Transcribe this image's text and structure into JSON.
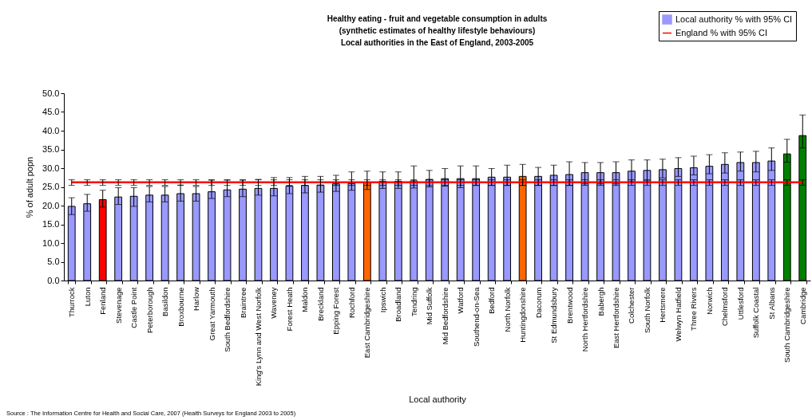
{
  "chart_data": {
    "type": "bar",
    "title": "Healthy eating - fruit and vegetable consumption in adults\n(synthetic estimates of healthy lifestyle behaviours)\nLocal authorities in the East of England, 2003-2005",
    "xlabel": "Local authority",
    "ylabel": "% of adult popn",
    "categories": [
      "Thurrock",
      "Luton",
      "Fenland",
      "Stevenage",
      "Castle Point",
      "Peterborough",
      "Basildon",
      "Broxbourne",
      "Harlow",
      "Great Yarmouth",
      "South Bedfordshire",
      "Braintree",
      "King's Lynn and West Norfolk",
      "Waveney",
      "Forest Heath",
      "Maldon",
      "Breckland",
      "Epping Forest",
      "Rochford",
      "East Cambridgeshire",
      "Ipswich",
      "Broadland",
      "Tendring",
      "Mid Suffolk",
      "Mid Bedfordshire",
      "Watford",
      "Southend-on-Sea",
      "Bedford",
      "North Norfolk",
      "Huntingdonshire",
      "Dacorum",
      "St Edmundsbury",
      "Brentwood",
      "North Hertfordshire",
      "Babergh",
      "East Hertfordshire",
      "Colchester",
      "South Norfolk",
      "Hertsmere",
      "Welwyn Hatfield",
      "Three Rivers",
      "Norwich",
      "Chelmsford",
      "Uttlesford",
      "Suffolk Coastal",
      "St Albans",
      "South Cambridgeshire",
      "Cambridge"
    ],
    "series": [
      {
        "name": "Local authority % with 95% CI",
        "color": "#9999ff",
        "colors": [
          "#9999ff",
          "#9999ff",
          "#ff0000",
          "#9999ff",
          "#9999ff",
          "#9999ff",
          "#9999ff",
          "#9999ff",
          "#9999ff",
          "#9999ff",
          "#9999ff",
          "#9999ff",
          "#9999ff",
          "#9999ff",
          "#9999ff",
          "#9999ff",
          "#9999ff",
          "#9999ff",
          "#9999ff",
          "#ff6600",
          "#9999ff",
          "#9999ff",
          "#9999ff",
          "#9999ff",
          "#9999ff",
          "#9999ff",
          "#9999ff",
          "#9999ff",
          "#9999ff",
          "#ff6600",
          "#9999ff",
          "#9999ff",
          "#9999ff",
          "#9999ff",
          "#9999ff",
          "#9999ff",
          "#9999ff",
          "#9999ff",
          "#9999ff",
          "#9999ff",
          "#9999ff",
          "#9999ff",
          "#9999ff",
          "#9999ff",
          "#9999ff",
          "#9999ff",
          "#008000",
          "#008000"
        ],
        "values": [
          19.8,
          20.5,
          21.6,
          22.3,
          22.5,
          22.8,
          22.8,
          23.2,
          23.2,
          23.7,
          24.2,
          24.4,
          24.6,
          24.6,
          25.2,
          25.4,
          25.5,
          25.8,
          25.9,
          26.2,
          26.5,
          26.5,
          26.6,
          27.0,
          27.2,
          27.2,
          27.2,
          27.6,
          27.6,
          27.8,
          27.8,
          28.1,
          28.3,
          28.8,
          28.8,
          28.8,
          29.2,
          29.4,
          29.6,
          29.9,
          30.1,
          30.5,
          31.0,
          31.5,
          31.5,
          31.9,
          33.8,
          38.7
        ],
        "errors": [
          [
            17.6,
            22.1
          ],
          [
            18.5,
            23.0
          ],
          [
            19.6,
            24.1
          ],
          [
            20.3,
            24.8
          ],
          [
            19.8,
            24.8
          ],
          [
            21.0,
            25.1
          ],
          [
            21.0,
            25.1
          ],
          [
            21.2,
            25.5
          ],
          [
            21.2,
            25.1
          ],
          [
            21.9,
            26.8
          ],
          [
            22.4,
            26.8
          ],
          [
            22.4,
            26.8
          ],
          [
            22.8,
            27.0
          ],
          [
            22.6,
            27.5
          ],
          [
            23.2,
            27.5
          ],
          [
            23.4,
            27.8
          ],
          [
            23.6,
            27.8
          ],
          [
            23.8,
            28.1
          ],
          [
            24.1,
            29.0
          ],
          [
            24.3,
            29.2
          ],
          [
            24.6,
            29.0
          ],
          [
            24.6,
            29.0
          ],
          [
            24.7,
            30.6
          ],
          [
            25.0,
            29.4
          ],
          [
            25.2,
            29.9
          ],
          [
            24.8,
            30.6
          ],
          [
            25.4,
            30.6
          ],
          [
            25.4,
            29.9
          ],
          [
            25.4,
            30.8
          ],
          [
            25.4,
            31.0
          ],
          [
            25.4,
            30.2
          ],
          [
            25.4,
            30.8
          ],
          [
            25.4,
            31.7
          ],
          [
            25.8,
            31.5
          ],
          [
            25.8,
            31.5
          ],
          [
            25.8,
            31.7
          ],
          [
            26.4,
            32.2
          ],
          [
            26.6,
            32.2
          ],
          [
            27.4,
            32.4
          ],
          [
            27.8,
            32.8
          ],
          [
            28.2,
            33.2
          ],
          [
            28.5,
            33.6
          ],
          [
            28.7,
            34.1
          ],
          [
            29.2,
            34.3
          ],
          [
            29.0,
            34.5
          ],
          [
            29.4,
            35.4
          ],
          [
            31.6,
            37.7
          ],
          [
            35.4,
            44.2
          ]
        ]
      },
      {
        "name": "England % with 95% CI",
        "type": "line",
        "color": "#ff0000",
        "marker": "none",
        "values": [
          26.2,
          26.2,
          26.2,
          26.2,
          26.2,
          26.2,
          26.2,
          26.2,
          26.2,
          26.2,
          26.2,
          26.2,
          26.2,
          26.2,
          26.2,
          26.2,
          26.2,
          26.2,
          26.2,
          26.2,
          26.2,
          26.2,
          26.2,
          26.2,
          26.2,
          26.2,
          26.2,
          26.2,
          26.2,
          26.2,
          26.2,
          26.2,
          26.2,
          26.2,
          26.2,
          26.2,
          26.2,
          26.2,
          26.2,
          26.2,
          26.2,
          26.2,
          26.2,
          26.2,
          26.2,
          26.2,
          26.2,
          26.2
        ],
        "errors": [
          [
            25.4,
            26.9
          ],
          [
            25.4,
            26.9
          ],
          [
            25.4,
            26.9
          ],
          [
            25.4,
            26.9
          ],
          [
            25.4,
            26.9
          ],
          [
            25.4,
            26.9
          ],
          [
            25.4,
            26.9
          ],
          [
            25.4,
            26.9
          ],
          [
            25.4,
            26.9
          ],
          [
            25.4,
            26.9
          ],
          [
            25.4,
            26.9
          ],
          [
            25.4,
            26.9
          ],
          [
            25.4,
            26.9
          ],
          [
            25.4,
            26.9
          ],
          [
            25.4,
            26.9
          ],
          [
            25.4,
            26.9
          ],
          [
            25.4,
            26.9
          ],
          [
            25.4,
            26.9
          ],
          [
            25.4,
            26.9
          ],
          [
            25.4,
            26.9
          ],
          [
            25.4,
            26.9
          ],
          [
            25.4,
            26.9
          ],
          [
            25.4,
            26.9
          ],
          [
            25.4,
            26.9
          ],
          [
            25.4,
            26.9
          ],
          [
            25.4,
            26.9
          ],
          [
            25.4,
            26.9
          ],
          [
            25.4,
            26.9
          ],
          [
            25.4,
            26.9
          ],
          [
            25.4,
            26.9
          ],
          [
            25.4,
            26.9
          ],
          [
            25.4,
            26.9
          ],
          [
            25.4,
            26.9
          ],
          [
            25.4,
            26.9
          ],
          [
            25.4,
            26.9
          ],
          [
            25.4,
            26.9
          ],
          [
            25.4,
            26.9
          ],
          [
            25.4,
            26.9
          ],
          [
            25.4,
            26.9
          ],
          [
            25.4,
            26.9
          ],
          [
            25.4,
            26.9
          ],
          [
            25.4,
            26.9
          ],
          [
            25.4,
            26.9
          ],
          [
            25.4,
            26.9
          ],
          [
            25.4,
            26.9
          ],
          [
            25.4,
            26.9
          ],
          [
            25.4,
            26.9
          ],
          [
            25.4,
            26.9
          ]
        ]
      }
    ],
    "ylim": [
      0,
      50
    ],
    "yticks": [
      {
        "value": 0,
        "label": "0.0"
      },
      {
        "value": 5,
        "label": "5.0"
      },
      {
        "value": 10,
        "label": "10.0"
      },
      {
        "value": 15,
        "label": "15.0"
      },
      {
        "value": 20,
        "label": "20.0"
      },
      {
        "value": 25,
        "label": "25.0"
      },
      {
        "value": 30,
        "label": "30.0"
      },
      {
        "value": 35,
        "label": "35.0"
      },
      {
        "value": 40,
        "label": "40.0"
      },
      {
        "value": 45,
        "label": "45.0"
      },
      {
        "value": 50,
        "label": "50.0"
      }
    ],
    "grid": false,
    "legend": "top right",
    "annotations": [
      "Source : The Information Centre for Health and Social Care, 2007 (Health Surveys for England 2003 to 2005)"
    ]
  }
}
